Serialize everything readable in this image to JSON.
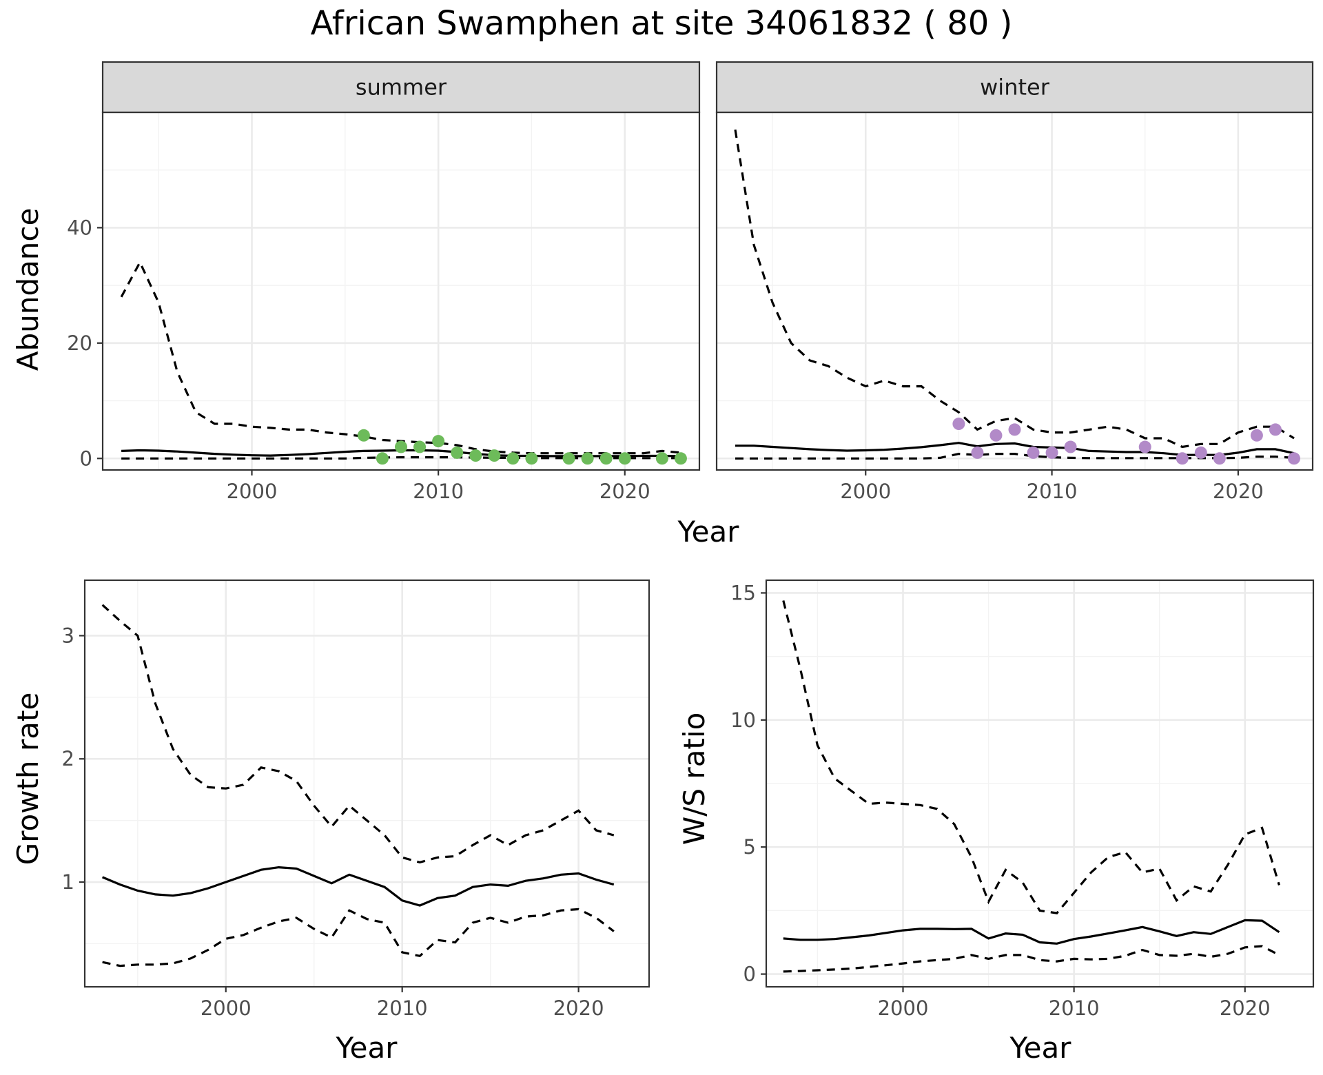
{
  "title": "African Swamphen at site 34061832 ( 80 )",
  "colors": {
    "summer_points": "#6dbb5a",
    "winter_points": "#b28ac8",
    "lines": "#000000"
  },
  "chart_data": [
    {
      "id": "abundance",
      "type": "line",
      "facets": [
        "summer",
        "winter"
      ],
      "xlabel": "Year",
      "ylabel": "Abundance",
      "xlim": [
        1992,
        2024
      ],
      "ylim": [
        -2,
        60
      ],
      "xticks": [
        2000,
        2010,
        2020
      ],
      "yticks": [
        0,
        20,
        40
      ],
      "grid": true,
      "panels": [
        {
          "label": "summer",
          "x": [
            1993,
            1994,
            1995,
            1996,
            1997,
            1998,
            1999,
            2000,
            2001,
            2002,
            2003,
            2004,
            2005,
            2006,
            2007,
            2008,
            2009,
            2010,
            2011,
            2012,
            2013,
            2014,
            2015,
            2016,
            2017,
            2018,
            2019,
            2020,
            2021,
            2022,
            2023
          ],
          "fit": [
            1.3,
            1.4,
            1.35,
            1.2,
            1.0,
            0.8,
            0.65,
            0.55,
            0.5,
            0.6,
            0.75,
            0.95,
            1.15,
            1.3,
            1.35,
            1.4,
            1.4,
            1.35,
            1.1,
            0.8,
            0.55,
            0.45,
            0.45,
            0.4,
            0.4,
            0.4,
            0.4,
            0.4,
            0.45,
            0.45,
            0.4
          ],
          "upper": [
            28,
            34,
            27,
            15,
            8,
            6,
            6,
            5.5,
            5.3,
            5,
            5,
            4.5,
            4.2,
            3.8,
            3.2,
            3,
            2.8,
            2.7,
            2.3,
            1.6,
            1.2,
            1.0,
            0.9,
            0.9,
            0.9,
            0.9,
            0.9,
            0.9,
            0.9,
            1.3,
            1.0
          ],
          "lower": [
            0,
            0,
            0,
            0,
            0,
            0,
            0,
            0,
            0,
            0,
            0,
            0,
            0,
            0.1,
            0.15,
            0.2,
            0.2,
            0.2,
            0.2,
            0.15,
            0.1,
            0.1,
            0.05,
            0.05,
            0.05,
            0.05,
            0.05,
            0.05,
            0.05,
            0.05,
            0.05
          ],
          "observed": [
            {
              "x": 2006,
              "y": 4
            },
            {
              "x": 2007,
              "y": 0
            },
            {
              "x": 2008,
              "y": 2
            },
            {
              "x": 2009,
              "y": 2
            },
            {
              "x": 2010,
              "y": 3
            },
            {
              "x": 2011,
              "y": 1
            },
            {
              "x": 2012,
              "y": 0.5
            },
            {
              "x": 2013,
              "y": 0.5
            },
            {
              "x": 2014,
              "y": 0
            },
            {
              "x": 2015,
              "y": 0
            },
            {
              "x": 2017,
              "y": 0
            },
            {
              "x": 2018,
              "y": 0
            },
            {
              "x": 2019,
              "y": 0
            },
            {
              "x": 2020,
              "y": 0
            },
            {
              "x": 2022,
              "y": 0
            },
            {
              "x": 2023,
              "y": 0
            }
          ]
        },
        {
          "label": "winter",
          "x": [
            1993,
            1994,
            1995,
            1996,
            1997,
            1998,
            1999,
            2000,
            2001,
            2002,
            2003,
            2004,
            2005,
            2006,
            2007,
            2008,
            2009,
            2010,
            2011,
            2012,
            2013,
            2014,
            2015,
            2016,
            2017,
            2018,
            2019,
            2020,
            2021,
            2022,
            2023
          ],
          "fit": [
            2.2,
            2.2,
            2.0,
            1.8,
            1.6,
            1.45,
            1.35,
            1.4,
            1.5,
            1.7,
            1.95,
            2.3,
            2.7,
            2.1,
            2.5,
            2.6,
            2.0,
            1.9,
            1.8,
            1.3,
            1.2,
            1.1,
            1.1,
            0.9,
            0.6,
            0.6,
            0.6,
            1.0,
            1.6,
            1.6,
            0.9
          ],
          "upper": [
            57,
            37,
            27,
            20,
            17,
            16,
            14,
            12.5,
            13.5,
            12.5,
            12.5,
            10,
            8,
            5,
            6.5,
            7,
            5,
            4.5,
            4.5,
            5,
            5.5,
            5,
            3.5,
            3.5,
            2,
            2.5,
            2.5,
            4.5,
            5.5,
            5.5,
            3.5
          ],
          "lower": [
            0,
            0,
            0,
            0,
            0,
            0,
            0,
            0,
            0,
            0,
            0,
            0.1,
            0.8,
            0.6,
            0.8,
            0.8,
            0.4,
            0.2,
            0.1,
            0.05,
            0.05,
            0.05,
            0.05,
            0.05,
            0.05,
            0.05,
            0.05,
            0.1,
            0.3,
            0.3,
            0.1
          ],
          "observed": [
            {
              "x": 2005,
              "y": 6
            },
            {
              "x": 2006,
              "y": 1
            },
            {
              "x": 2007,
              "y": 4
            },
            {
              "x": 2008,
              "y": 5
            },
            {
              "x": 2009,
              "y": 1
            },
            {
              "x": 2010,
              "y": 1
            },
            {
              "x": 2011,
              "y": 2
            },
            {
              "x": 2015,
              "y": 2
            },
            {
              "x": 2017,
              "y": 0
            },
            {
              "x": 2018,
              "y": 1
            },
            {
              "x": 2019,
              "y": 0
            },
            {
              "x": 2021,
              "y": 4
            },
            {
              "x": 2022,
              "y": 5
            },
            {
              "x": 2023,
              "y": 0
            }
          ]
        }
      ]
    },
    {
      "id": "growth",
      "type": "line",
      "xlabel": "Year",
      "ylabel": "Growth rate",
      "xlim": [
        1992,
        2024
      ],
      "ylim": [
        0.15,
        3.45
      ],
      "xticks": [
        2000,
        2010,
        2020
      ],
      "yticks": [
        1,
        2,
        3
      ],
      "grid": true,
      "x": [
        1993,
        1994,
        1995,
        1996,
        1997,
        1998,
        1999,
        2000,
        2001,
        2002,
        2003,
        2004,
        2005,
        2006,
        2007,
        2008,
        2009,
        2010,
        2011,
        2012,
        2013,
        2014,
        2015,
        2016,
        2017,
        2018,
        2019,
        2020,
        2021,
        2022
      ],
      "fit": [
        1.04,
        0.98,
        0.93,
        0.9,
        0.89,
        0.91,
        0.95,
        1.0,
        1.05,
        1.1,
        1.12,
        1.11,
        1.05,
        0.99,
        1.06,
        1.01,
        0.96,
        0.85,
        0.81,
        0.87,
        0.89,
        0.96,
        0.98,
        0.97,
        1.01,
        1.03,
        1.06,
        1.07,
        1.02,
        0.98
      ],
      "upper": [
        3.25,
        3.12,
        3.0,
        2.45,
        2.08,
        1.87,
        1.77,
        1.76,
        1.79,
        1.93,
        1.9,
        1.82,
        1.62,
        1.45,
        1.62,
        1.5,
        1.38,
        1.2,
        1.16,
        1.2,
        1.21,
        1.3,
        1.38,
        1.3,
        1.38,
        1.42,
        1.5,
        1.58,
        1.42,
        1.38
      ],
      "lower": [
        0.35,
        0.32,
        0.33,
        0.33,
        0.34,
        0.38,
        0.45,
        0.54,
        0.57,
        0.63,
        0.68,
        0.71,
        0.62,
        0.55,
        0.77,
        0.7,
        0.67,
        0.43,
        0.4,
        0.53,
        0.51,
        0.67,
        0.71,
        0.67,
        0.72,
        0.73,
        0.77,
        0.78,
        0.71,
        0.6
      ]
    },
    {
      "id": "ws_ratio",
      "type": "line",
      "xlabel": "Year",
      "ylabel": "W/S ratio",
      "xlim": [
        1992,
        2024
      ],
      "ylim": [
        -0.5,
        15.5
      ],
      "xticks": [
        2000,
        2010,
        2020
      ],
      "yticks": [
        0,
        5,
        10,
        15
      ],
      "grid": true,
      "x": [
        1993,
        1994,
        1995,
        1996,
        1997,
        1998,
        1999,
        2000,
        2001,
        2002,
        2003,
        2004,
        2005,
        2006,
        2007,
        2008,
        2009,
        2010,
        2011,
        2012,
        2013,
        2014,
        2015,
        2016,
        2017,
        2018,
        2019,
        2020,
        2021,
        2022
      ],
      "fit": [
        1.4,
        1.35,
        1.35,
        1.38,
        1.45,
        1.52,
        1.62,
        1.72,
        1.78,
        1.78,
        1.77,
        1.78,
        1.4,
        1.6,
        1.55,
        1.25,
        1.2,
        1.38,
        1.48,
        1.6,
        1.72,
        1.85,
        1.68,
        1.5,
        1.65,
        1.58,
        1.85,
        2.12,
        2.1,
        1.65
      ],
      "upper": [
        14.7,
        12.0,
        9.0,
        7.7,
        7.2,
        6.7,
        6.75,
        6.7,
        6.65,
        6.5,
        5.9,
        4.6,
        2.85,
        4.1,
        3.6,
        2.5,
        2.4,
        3.2,
        4.0,
        4.6,
        4.8,
        4.0,
        4.15,
        2.9,
        3.45,
        3.25,
        4.3,
        5.5,
        5.75,
        3.5
      ],
      "lower": [
        0.1,
        0.12,
        0.15,
        0.18,
        0.22,
        0.28,
        0.35,
        0.42,
        0.5,
        0.55,
        0.6,
        0.75,
        0.6,
        0.75,
        0.75,
        0.55,
        0.5,
        0.6,
        0.58,
        0.6,
        0.72,
        0.95,
        0.75,
        0.72,
        0.8,
        0.68,
        0.8,
        1.05,
        1.1,
        0.75
      ]
    }
  ]
}
